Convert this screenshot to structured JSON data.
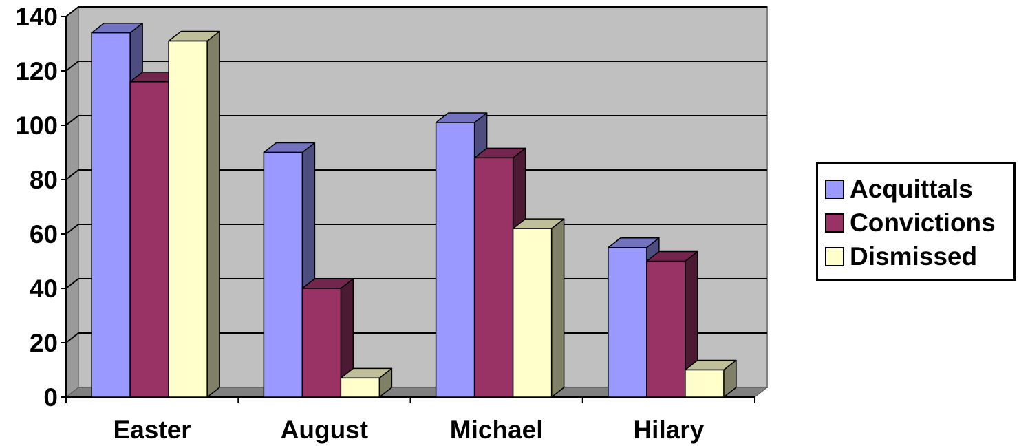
{
  "chart_data": {
    "type": "bar",
    "title": "",
    "xlabel": "",
    "ylabel": "",
    "categories": [
      "Easter",
      "August",
      "Michael",
      "Hilary"
    ],
    "series": [
      {
        "name": "Acquittals",
        "values": [
          134,
          90,
          101,
          55
        ],
        "color": "#9999FF"
      },
      {
        "name": "Convictions",
        "values": [
          116,
          40,
          88,
          50
        ],
        "color": "#993366"
      },
      {
        "name": "Dismissed",
        "values": [
          131,
          7,
          62,
          10
        ],
        "color": "#FFFFCC"
      }
    ],
    "ylim": [
      0,
      140
    ],
    "yticks": [
      "0",
      "20",
      "40",
      "60",
      "80",
      "100",
      "120",
      "140"
    ],
    "grid": true,
    "three_d": true,
    "legend_position": "right",
    "plot_background": "#C0C0C0"
  }
}
